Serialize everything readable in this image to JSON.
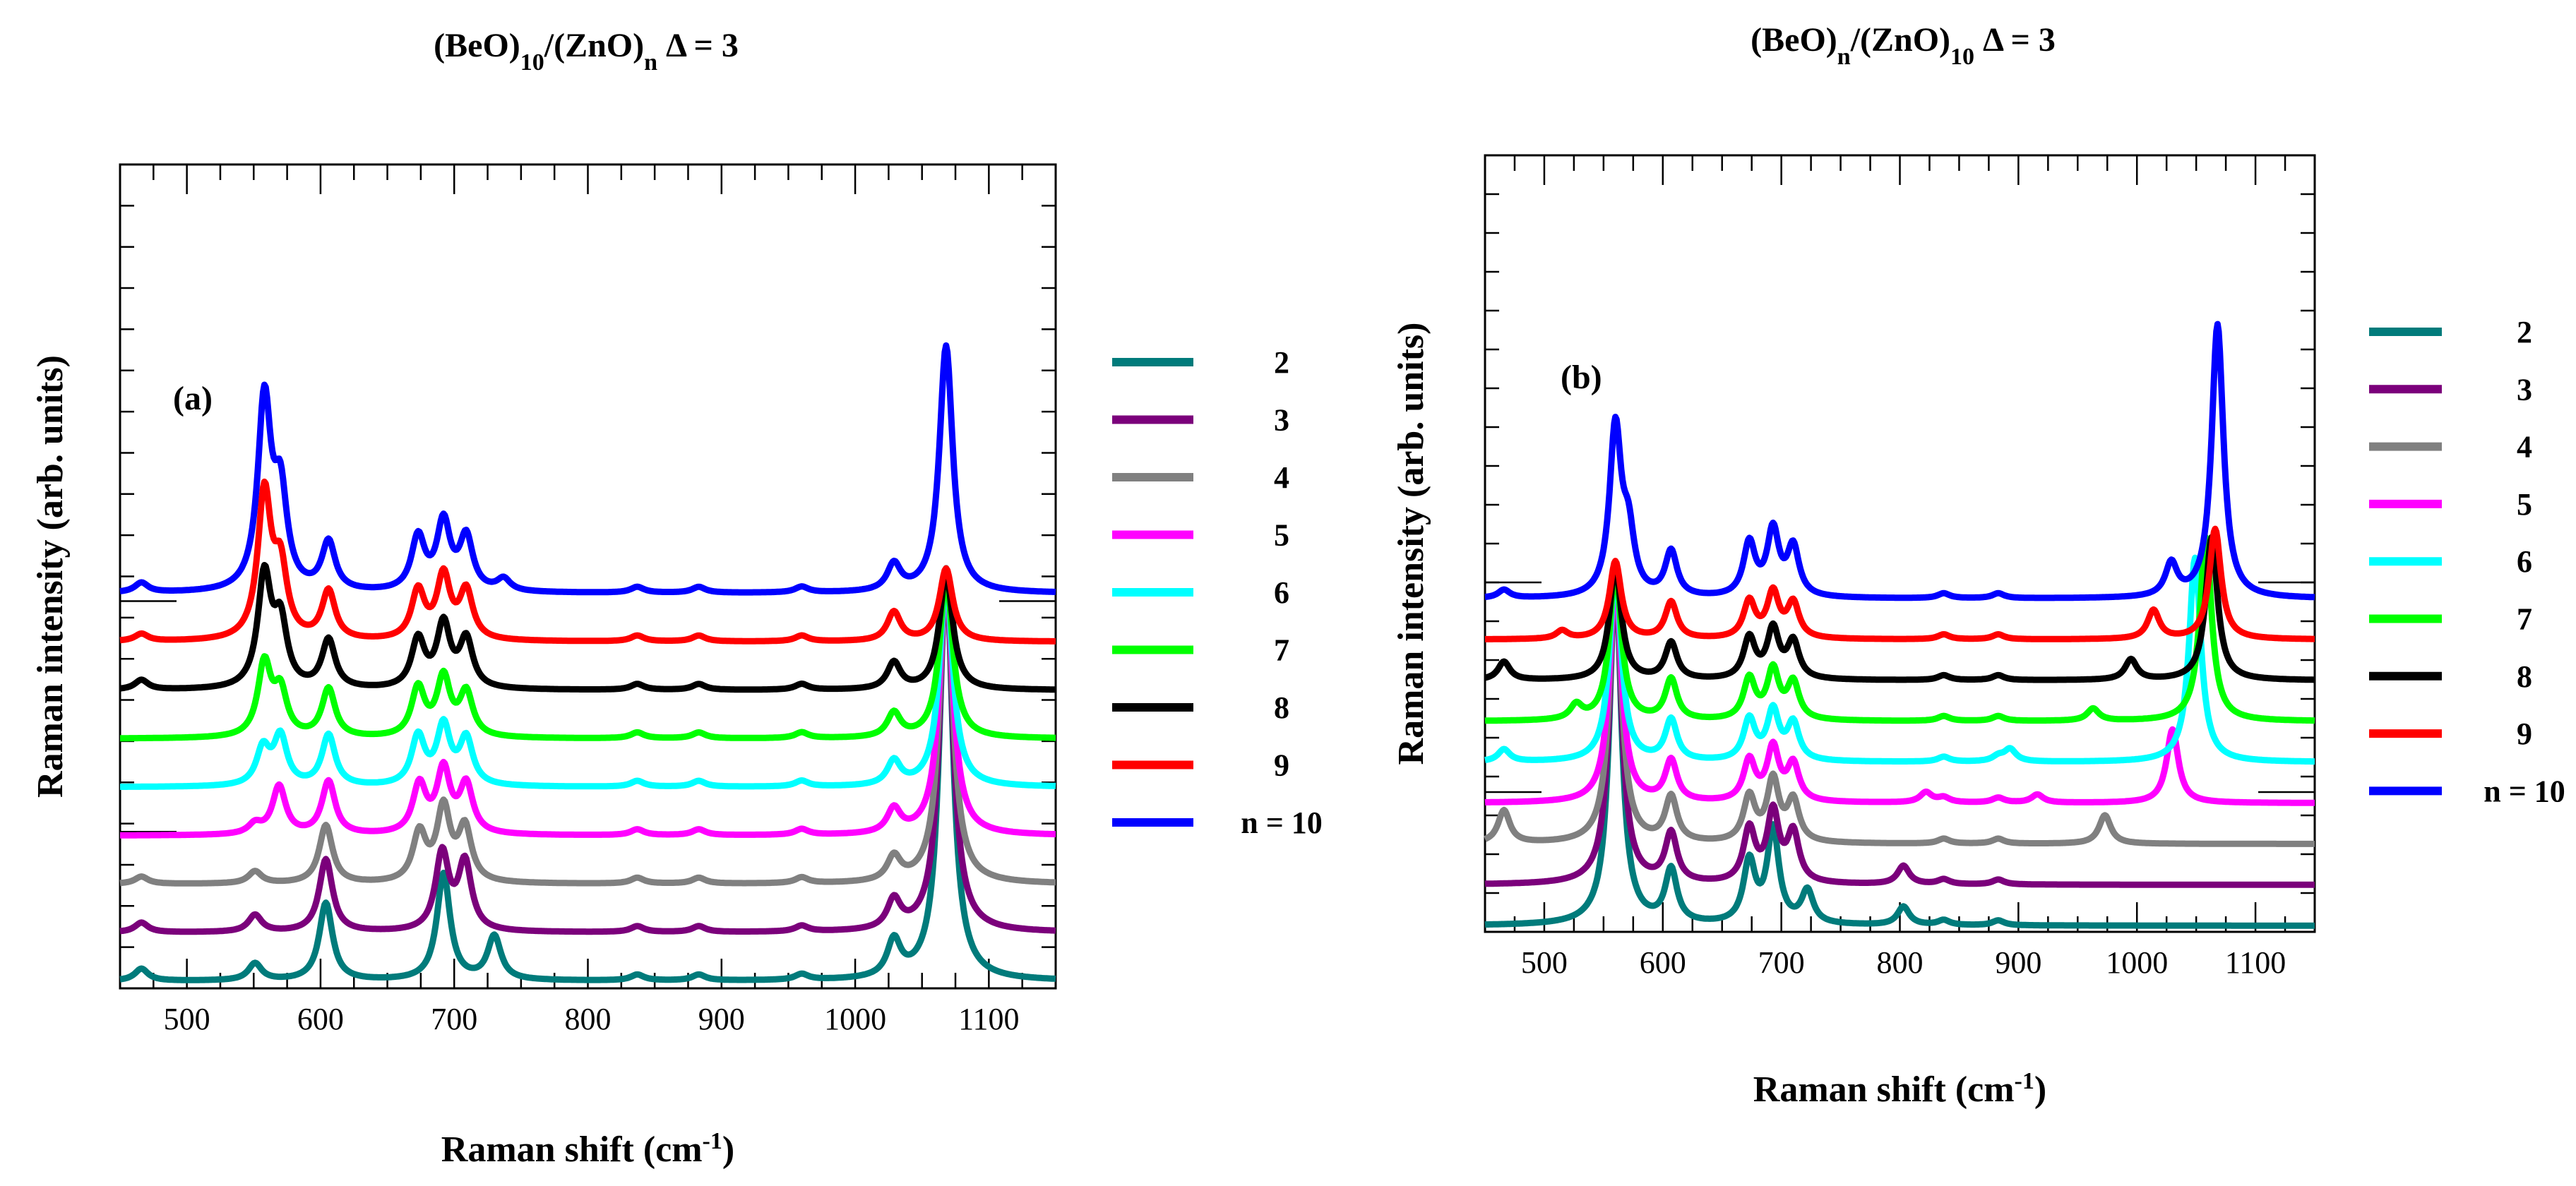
{
  "chart_data": [
    {
      "type": "line",
      "panel_label": "(a)",
      "title": {
        "parts": [
          {
            "t": "(BeO)",
            "s": ""
          },
          {
            "t": "10",
            "s": "sub"
          },
          {
            "t": "/(ZnO)",
            "s": ""
          },
          {
            "t": "n",
            "s": "sub"
          },
          {
            "t": " Δ = 3",
            "s": ""
          }
        ]
      },
      "xlabel": {
        "parts": [
          {
            "t": "Raman shift (cm",
            "s": ""
          },
          {
            "t": "-1",
            "s": "sup"
          },
          {
            "t": ")",
            "s": ""
          }
        ]
      },
      "ylabel": "Raman intensity (arb. units)",
      "xlim": [
        450,
        1150
      ],
      "ylim": [
        0,
        17
      ],
      "x_ticks": [
        500,
        600,
        700,
        800,
        900,
        1000,
        1100
      ],
      "y_ticklabels_shown": false,
      "legend_position": "right-outside",
      "x_peaks_common": [
        837,
        883,
        960
      ],
      "series": [
        {
          "name": "2",
          "color": "#007b7b",
          "offset": 0.0,
          "peaks": [
            [
              466,
              0.25
            ],
            [
              551,
              0.35
            ],
            [
              604,
              1.6
            ],
            [
              692,
              2.2
            ],
            [
              730,
              0.9
            ],
            [
              1029,
              0.75
            ],
            [
              1068,
              8.5
            ]
          ]
        },
        {
          "name": "3",
          "color": "#7b007b",
          "offset": 1.0,
          "peaks": [
            [
              466,
              0.2
            ],
            [
              551,
              0.35
            ],
            [
              604,
              1.5
            ],
            [
              691,
              1.6
            ],
            [
              708,
              1.4
            ],
            [
              1029,
              0.6
            ],
            [
              1068,
              7.4
            ]
          ]
        },
        {
          "name": "4",
          "color": "#808080",
          "offset": 2.0,
          "peaks": [
            [
              466,
              0.15
            ],
            [
              551,
              0.25
            ],
            [
              604,
              1.2
            ],
            [
              674,
              1.0
            ],
            [
              692,
              1.5
            ],
            [
              708,
              1.1
            ],
            [
              1029,
              0.5
            ],
            [
              1068,
              6.4
            ]
          ]
        },
        {
          "name": "5",
          "color": "#ff00ff",
          "offset": 3.0,
          "peaks": [
            [
              551,
              0.2
            ],
            [
              569,
              1.0
            ],
            [
              606,
              1.1
            ],
            [
              674,
              1.0
            ],
            [
              692,
              1.3
            ],
            [
              709,
              1.0
            ],
            [
              1029,
              0.5
            ],
            [
              1068,
              5.4
            ]
          ]
        },
        {
          "name": "6",
          "color": "#00ffff",
          "offset": 4.0,
          "peaks": [
            [
              557,
              0.75
            ],
            [
              570,
              1.0
            ],
            [
              606,
              1.05
            ],
            [
              673,
              1.0
            ],
            [
              692,
              1.2
            ],
            [
              709,
              0.95
            ],
            [
              1029,
              0.5
            ],
            [
              1068,
              4.3
            ]
          ]
        },
        {
          "name": "7",
          "color": "#00ff00",
          "offset": 5.0,
          "peaks": [
            [
              558,
              1.5
            ],
            [
              570,
              0.9
            ],
            [
              606,
              1.0
            ],
            [
              673,
              1.0
            ],
            [
              692,
              1.2
            ],
            [
              709,
              0.9
            ],
            [
              1029,
              0.5
            ],
            [
              1068,
              3.3
            ]
          ]
        },
        {
          "name": "8",
          "color": "#000000",
          "offset": 6.0,
          "peaks": [
            [
              466,
              0.2
            ],
            [
              558,
              2.3
            ],
            [
              570,
              1.3
            ],
            [
              606,
              1.0
            ],
            [
              673,
              1.0
            ],
            [
              692,
              1.3
            ],
            [
              709,
              1.0
            ],
            [
              1029,
              0.55
            ],
            [
              1068,
              2.4
            ]
          ]
        },
        {
          "name": "9",
          "color": "#ff0000",
          "offset": 7.0,
          "peaks": [
            [
              466,
              0.15
            ],
            [
              558,
              3.0
            ],
            [
              570,
              1.4
            ],
            [
              606,
              1.0
            ],
            [
              673,
              1.0
            ],
            [
              692,
              1.3
            ],
            [
              709,
              1.0
            ],
            [
              1029,
              0.6
            ],
            [
              1068,
              1.5
            ]
          ]
        },
        {
          "name": "n = 10",
          "color": "#0000ff",
          "offset": 8.0,
          "peaks": [
            [
              466,
              0.2
            ],
            [
              558,
              3.9
            ],
            [
              570,
              1.9
            ],
            [
              606,
              1.0
            ],
            [
              673,
              1.1
            ],
            [
              692,
              1.4
            ],
            [
              709,
              1.1
            ],
            [
              737,
              0.25
            ],
            [
              1029,
              0.55
            ],
            [
              1068,
              5.1
            ]
          ]
        }
      ]
    },
    {
      "type": "line",
      "panel_label": "(b)",
      "title": {
        "parts": [
          {
            "t": "(BeO)",
            "s": ""
          },
          {
            "t": "n",
            "s": "sub"
          },
          {
            "t": "/(ZnO)",
            "s": ""
          },
          {
            "t": "10",
            "s": "sub"
          },
          {
            "t": " Δ = 3",
            "s": ""
          }
        ]
      },
      "xlabel": {
        "parts": [
          {
            "t": "Raman shift (cm",
            "s": ""
          },
          {
            "t": "-1",
            "s": "sup"
          },
          {
            "t": ")",
            "s": ""
          }
        ]
      },
      "ylabel": "Raman intensity (arb. units)",
      "xlim": [
        450,
        1150
      ],
      "ylim": [
        0,
        19
      ],
      "x_ticks": [
        500,
        600,
        700,
        800,
        900,
        1000,
        1100
      ],
      "y_ticklabels_shown": false,
      "legend_position": "right-outside",
      "x_peaks_common": [
        837,
        883
      ],
      "series": [
        {
          "name": "2",
          "color": "#007b7b",
          "offset": 0.0,
          "peaks": [
            [
              560,
              8.6
            ],
            [
              607,
              1.3
            ],
            [
              673,
              1.5
            ],
            [
              693,
              2.3
            ],
            [
              722,
              0.8
            ],
            [
              803,
              0.45
            ]
          ]
        },
        {
          "name": "3",
          "color": "#7b007b",
          "offset": 1.0,
          "peaks": [
            [
              560,
              7.6
            ],
            [
              607,
              1.2
            ],
            [
              673,
              1.3
            ],
            [
              693,
              1.7
            ],
            [
              710,
              1.2
            ],
            [
              803,
              0.45
            ]
          ]
        },
        {
          "name": "4",
          "color": "#808080",
          "offset": 2.0,
          "peaks": [
            [
              466,
              0.8
            ],
            [
              560,
              6.6
            ],
            [
              607,
              1.1
            ],
            [
              673,
              1.1
            ],
            [
              693,
              1.5
            ],
            [
              710,
              1.0
            ],
            [
              973,
              0.7
            ]
          ]
        },
        {
          "name": "5",
          "color": "#ff00ff",
          "offset": 3.0,
          "peaks": [
            [
              560,
              5.6
            ],
            [
              607,
              1.0
            ],
            [
              673,
              1.0
            ],
            [
              693,
              1.3
            ],
            [
              710,
              0.9
            ],
            [
              822,
              0.25
            ],
            [
              916,
              0.2
            ],
            [
              1030,
              1.8
            ]
          ]
        },
        {
          "name": "6",
          "color": "#00ffff",
          "offset": 4.0,
          "peaks": [
            [
              466,
              0.3
            ],
            [
              560,
              4.7
            ],
            [
              607,
              1.0
            ],
            [
              673,
              1.0
            ],
            [
              693,
              1.2
            ],
            [
              710,
              0.9
            ],
            [
              893,
              0.3
            ],
            [
              1049,
              5.0
            ]
          ]
        },
        {
          "name": "7",
          "color": "#00ff00",
          "offset": 5.0,
          "peaks": [
            [
              527,
              0.35
            ],
            [
              560,
              3.7
            ],
            [
              607,
              1.0
            ],
            [
              673,
              1.0
            ],
            [
              693,
              1.2
            ],
            [
              710,
              0.9
            ],
            [
              963,
              0.3
            ],
            [
              1058,
              4.5
            ]
          ]
        },
        {
          "name": "8",
          "color": "#000000",
          "offset": 6.0,
          "peaks": [
            [
              466,
              0.45
            ],
            [
              560,
              2.8
            ],
            [
              607,
              0.9
            ],
            [
              673,
              1.0
            ],
            [
              693,
              1.2
            ],
            [
              710,
              0.9
            ],
            [
              995,
              0.5
            ],
            [
              1063,
              3.5
            ]
          ]
        },
        {
          "name": "9",
          "color": "#ff0000",
          "offset": 7.0,
          "peaks": [
            [
              515,
              0.2
            ],
            [
              560,
              1.9
            ],
            [
              607,
              0.9
            ],
            [
              673,
              0.9
            ],
            [
              693,
              1.1
            ],
            [
              710,
              0.85
            ],
            [
              1014,
              0.7
            ],
            [
              1066,
              2.7
            ]
          ]
        },
        {
          "name": "n = 10",
          "color": "#0000ff",
          "offset": 8.0,
          "peaks": [
            [
              466,
              0.2
            ],
            [
              560,
              4.1
            ],
            [
              571,
              1.4
            ],
            [
              607,
              1.1
            ],
            [
              673,
              1.3
            ],
            [
              693,
              1.6
            ],
            [
              710,
              1.2
            ],
            [
              1029,
              0.8
            ],
            [
              1068,
              6.7
            ]
          ]
        }
      ]
    }
  ]
}
